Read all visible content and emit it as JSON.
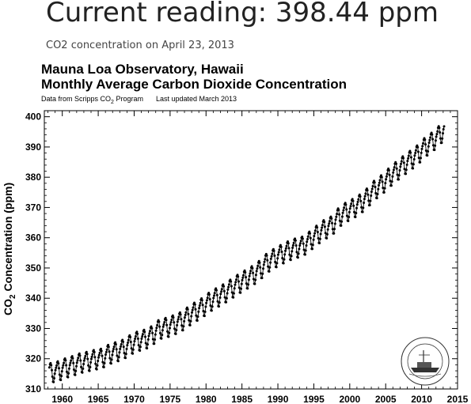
{
  "header": {
    "headline": "Current reading: 398.44 ppm",
    "subline": "CO2 concentration on April 23, 2013"
  },
  "figure": {
    "title_line1": "Mauna Loa Observatory, Hawaii",
    "title_line2": "Monthly Average Carbon Dioxide Concentration",
    "credit_prefix": "Data from Scripps CO",
    "credit_sub": "2",
    "credit_suffix": " Program",
    "credit_updated": "Last updated March 2013",
    "ylabel_main": "CO",
    "ylabel_sub": "2",
    "ylabel_rest": " Concentration (ppm)"
  },
  "chart_data": {
    "type": "line",
    "marker": "filled-circle",
    "series_color": "#000000",
    "xlim": [
      1957.5,
      2015
    ],
    "ylim": [
      310,
      402
    ],
    "x_ticks": [
      1960,
      1965,
      1970,
      1975,
      1980,
      1985,
      1990,
      1995,
      2000,
      2005,
      2010,
      2015
    ],
    "y_ticks": [
      310,
      320,
      330,
      340,
      350,
      360,
      370,
      380,
      390,
      400
    ],
    "grid": false,
    "x": [
      1958,
      1959,
      1960,
      1961,
      1962,
      1963,
      1964,
      1965,
      1966,
      1967,
      1968,
      1969,
      1970,
      1971,
      1972,
      1973,
      1974,
      1975,
      1976,
      1977,
      1978,
      1979,
      1980,
      1981,
      1982,
      1983,
      1984,
      1985,
      1986,
      1987,
      1988,
      1989,
      1990,
      1991,
      1992,
      1993,
      1994,
      1995,
      1996,
      1997,
      1998,
      1999,
      2000,
      2001,
      2002,
      2003,
      2004,
      2005,
      2006,
      2007,
      2008,
      2009,
      2010,
      2011,
      2012,
      2013
    ],
    "annual_mean_ppm": [
      315.3,
      315.9,
      316.9,
      317.6,
      318.5,
      319.0,
      319.6,
      320.0,
      321.4,
      322.2,
      323.0,
      324.6,
      325.7,
      326.3,
      327.5,
      329.7,
      330.2,
      331.1,
      332.1,
      333.8,
      335.4,
      336.8,
      338.7,
      340.1,
      341.4,
      343.0,
      344.6,
      346.0,
      347.4,
      349.2,
      351.6,
      353.1,
      354.4,
      355.6,
      356.5,
      357.1,
      358.9,
      360.9,
      362.7,
      363.8,
      366.7,
      368.4,
      369.6,
      371.1,
      373.2,
      375.8,
      377.5,
      379.8,
      381.9,
      383.8,
      385.6,
      387.4,
      389.9,
      391.6,
      393.8,
      396.5
    ],
    "seasonal_cycle_ppm": [
      0.6,
      1.3,
      2.0,
      3.0,
      3.3,
      2.6,
      0.9,
      -1.3,
      -3.0,
      -3.2,
      -2.0,
      -0.5
    ]
  },
  "logo": {
    "arc_text": "NATIONAL OCEANIC AND ATMOSPHERIC",
    "bottom_text": "NOAA"
  }
}
